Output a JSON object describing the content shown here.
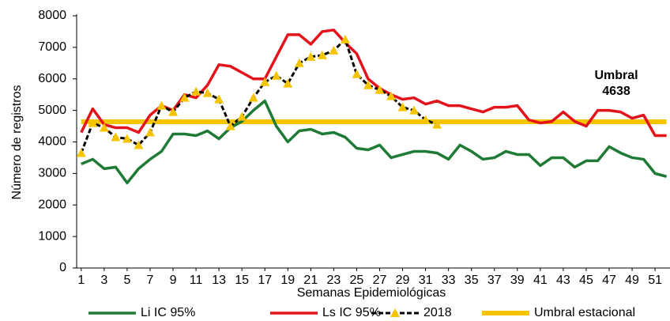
{
  "chart_data": {
    "type": "line",
    "ylabel": "Número de registros",
    "xlabel": "Semanas Epidemiológicas",
    "annotation": [
      "Umbral",
      "4638"
    ],
    "annotation_color": "#e3131b",
    "x": [
      1,
      2,
      3,
      4,
      5,
      6,
      7,
      8,
      9,
      10,
      11,
      12,
      13,
      14,
      15,
      16,
      17,
      18,
      19,
      20,
      21,
      22,
      23,
      24,
      25,
      26,
      27,
      28,
      29,
      30,
      31,
      32,
      33,
      34,
      35,
      36,
      37,
      38,
      39,
      40,
      41,
      42,
      43,
      44,
      45,
      46,
      47,
      48,
      49,
      50,
      51,
      52
    ],
    "xlim": [
      0.6,
      52.3
    ],
    "xticks": [
      1,
      3,
      5,
      7,
      9,
      11,
      13,
      15,
      17,
      19,
      21,
      23,
      25,
      27,
      29,
      31,
      33,
      35,
      37,
      39,
      41,
      43,
      45,
      47,
      49,
      51
    ],
    "ylim": [
      0,
      8000
    ],
    "yticks": [
      0,
      1000,
      2000,
      3000,
      4000,
      5000,
      6000,
      7000,
      8000
    ],
    "grid": false,
    "legend": "bottom",
    "series": [
      {
        "name": "Li IC 95%",
        "color": "#1e7a34",
        "style": "solid",
        "values": [
          3300,
          3450,
          3150,
          3200,
          2700,
          3150,
          3450,
          3700,
          4250,
          4250,
          4200,
          4350,
          4100,
          4450,
          4650,
          5000,
          5300,
          4500,
          4000,
          4350,
          4400,
          4250,
          4300,
          4150,
          3800,
          3750,
          3900,
          3500,
          3600,
          3700,
          3700,
          3650,
          3450,
          3900,
          3700,
          3450,
          3500,
          3700,
          3600,
          3600,
          3250,
          3500,
          3500,
          3200,
          3400,
          3400,
          3850,
          3650,
          3500,
          3450,
          3000,
          2900
        ]
      },
      {
        "name": "Ls IC 95%",
        "color": "#e3131b",
        "style": "solid",
        "values": [
          4300,
          5050,
          4550,
          4450,
          4450,
          4300,
          4850,
          5150,
          5000,
          5500,
          5400,
          5800,
          6450,
          6400,
          6200,
          6000,
          6000,
          6700,
          7400,
          7400,
          7100,
          7500,
          7550,
          7150,
          6800,
          6000,
          5700,
          5500,
          5350,
          5400,
          5200,
          5300,
          5150,
          5150,
          5050,
          4950,
          5100,
          5100,
          5150,
          4700,
          4600,
          4650,
          4950,
          4650,
          4500,
          5000,
          5000,
          4950,
          4750,
          4850,
          4200,
          4200
        ]
      },
      {
        "name": "2018",
        "color": "#000000",
        "marker_color": "#f5c400",
        "style": "dashed-markers",
        "values": [
          3650,
          4600,
          4450,
          4150,
          4100,
          3900,
          4300,
          5150,
          4950,
          5400,
          5600,
          5550,
          5350,
          4500,
          4800,
          5400,
          5900,
          6100,
          5850,
          6500,
          6700,
          6750,
          6900,
          7250,
          6150,
          5800,
          5650,
          5450,
          5100,
          5000,
          4700,
          4550,
          null,
          null,
          null,
          null,
          null,
          null,
          null,
          null,
          null,
          null,
          null,
          null,
          null,
          null,
          null,
          null,
          null,
          null,
          null,
          null
        ]
      },
      {
        "name": "Umbral estacional",
        "color": "#f5c400",
        "style": "thick",
        "values": [
          4638,
          4638,
          4638,
          4638,
          4638,
          4638,
          4638,
          4638,
          4638,
          4638,
          4638,
          4638,
          4638,
          4638,
          4638,
          4638,
          4638,
          4638,
          4638,
          4638,
          4638,
          4638,
          4638,
          4638,
          4638,
          4638,
          4638,
          4638,
          4638,
          4638,
          4638,
          4638,
          4638,
          4638,
          4638,
          4638,
          4638,
          4638,
          4638,
          4638,
          4638,
          4638,
          4638,
          4638,
          4638,
          4638,
          4638,
          4638,
          4638,
          4638,
          4638,
          4638
        ]
      }
    ]
  }
}
